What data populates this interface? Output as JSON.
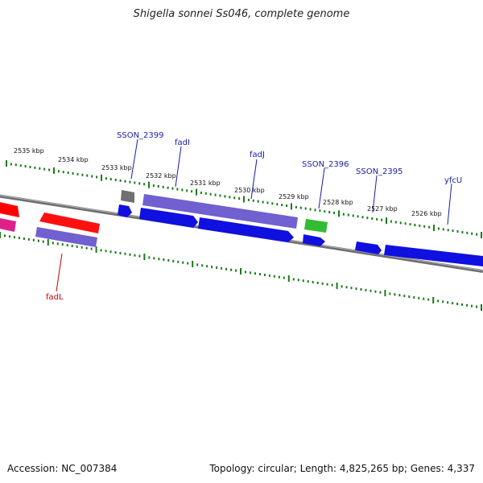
{
  "title": "Shigella sonnei Ss046, complete genome",
  "footer": {
    "accession": "Accession: NC_007384",
    "summary": "Topology: circular; Length: 4,825,265 bp; Genes: 4,337"
  },
  "colors": {
    "backbone": "#7a7a7a",
    "tick": "#1a7a1a",
    "label_blue": "#1a1aaa",
    "label_red": "#cc0000"
  },
  "ruler": [
    {
      "label": "2535 kbp"
    },
    {
      "label": "2534 kbp"
    },
    {
      "label": "2533 kbp"
    },
    {
      "label": "2532 kbp"
    },
    {
      "label": "2531 kbp"
    },
    {
      "label": "2530 kbp"
    },
    {
      "label": "2529 kbp"
    },
    {
      "label": "2528 kbp"
    },
    {
      "label": "2527 kbp"
    },
    {
      "label": "2526 kbp"
    }
  ],
  "gene_labels": [
    {
      "name": "SSON_2399",
      "color": "#1a1aaa"
    },
    {
      "name": "fadI",
      "color": "#1a1aaa"
    },
    {
      "name": "fadJ",
      "color": "#1a1aaa"
    },
    {
      "name": "SSON_2396",
      "color": "#1a1aaa"
    },
    {
      "name": "SSON_2395",
      "color": "#1a1aaa"
    },
    {
      "name": "yfcU",
      "color": "#1a1aaa"
    },
    {
      "name": "fadL",
      "color": "#cc0000"
    }
  ]
}
